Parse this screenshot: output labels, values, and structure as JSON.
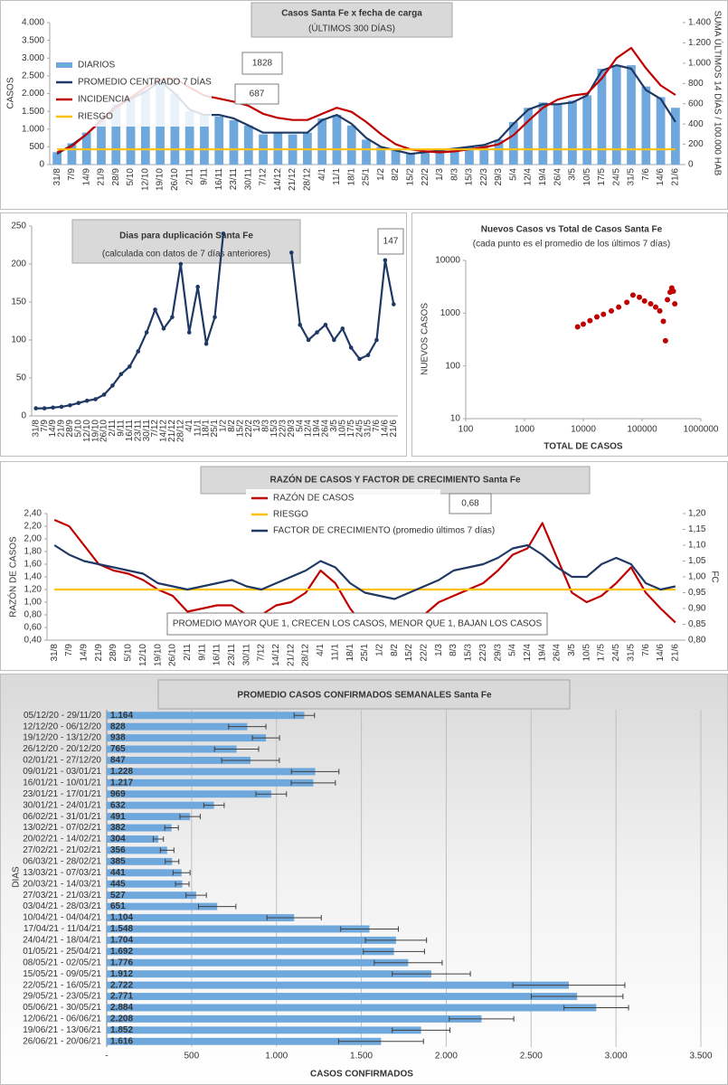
{
  "chart_data": [
    {
      "type": "combo",
      "title": "Casos Santa Fe x fecha de carga",
      "subtitle": "(ÚLTIMOS 300 DÍAS)",
      "ylabel": "CASOS",
      "y2label": "SUMA ÚLTIMOS 14 DÍAS / 100.000 HAB",
      "categories": [
        "31/8",
        "7/9",
        "14/9",
        "21/9",
        "28/9",
        "5/10",
        "12/10",
        "19/10",
        "26/10",
        "2/11",
        "9/11",
        "16/11",
        "23/11",
        "30/11",
        "7/12",
        "14/12",
        "21/12",
        "28/12",
        "4/1",
        "11/1",
        "18/1",
        "25/1",
        "1/2",
        "8/2",
        "15/2",
        "22/2",
        "1/3",
        "8/3",
        "15/3",
        "22/3",
        "29/3",
        "5/4",
        "12/4",
        "19/4",
        "26/4",
        "3/5",
        "10/5",
        "17/5",
        "24/5",
        "31/5",
        "7/6",
        "14/6",
        "21/6"
      ],
      "series": [
        {
          "name": "DIARIOS",
          "type": "bar",
          "color": "#6fa8dc",
          "values": [
            350,
            600,
            900,
            1300,
            1700,
            1900,
            2100,
            2400,
            2000,
            1500,
            1400,
            1350,
            1250,
            1100,
            850,
            900,
            850,
            900,
            1300,
            1400,
            1100,
            700,
            500,
            400,
            300,
            350,
            400,
            450,
            500,
            550,
            700,
            1200,
            1600,
            1750,
            1700,
            1800,
            1950,
            2700,
            2800,
            2800,
            2200,
            1900,
            1600
          ]
        },
        {
          "name": "PROMEDIO CENTRADO 7 DÍAS",
          "type": "line",
          "color": "#1f3864",
          "values": [
            300,
            550,
            850,
            1250,
            1650,
            1850,
            2050,
            2350,
            2000,
            1550,
            1400,
            1400,
            1300,
            1100,
            900,
            900,
            900,
            900,
            1250,
            1400,
            1150,
            750,
            500,
            400,
            300,
            350,
            400,
            450,
            500,
            550,
            700,
            1150,
            1550,
            1700,
            1700,
            1750,
            1950,
            2650,
            2800,
            2700,
            2100,
            1850,
            1200
          ]
        },
        {
          "name": "INCIDENCIA",
          "type": "line",
          "axis": "y2",
          "color": "#c00000",
          "values": [
            120,
            180,
            300,
            430,
            560,
            660,
            760,
            840,
            850,
            760,
            680,
            650,
            620,
            580,
            500,
            460,
            440,
            440,
            500,
            560,
            520,
            420,
            300,
            200,
            150,
            130,
            120,
            130,
            150,
            170,
            200,
            290,
            430,
            560,
            640,
            680,
            700,
            850,
            1050,
            1150,
            950,
            780,
            687
          ]
        },
        {
          "name": "RIESGO",
          "type": "line",
          "axis": "y2",
          "color": "#ffc000",
          "values": [
            150,
            150,
            150,
            150,
            150,
            150,
            150,
            150,
            150,
            150,
            150,
            150,
            150,
            150,
            150,
            150,
            150,
            150,
            150,
            150,
            150,
            150,
            150,
            150,
            150,
            150,
            150,
            150,
            150,
            150,
            150,
            150,
            150,
            150,
            150,
            150,
            150,
            150,
            150,
            150,
            150,
            150,
            150
          ]
        }
      ],
      "ylim": [
        0,
        4000
      ],
      "yticks": [
        0,
        500,
        {
          "value": 1000,
          "label": "1.000"
        },
        {
          "value": 1500,
          "label": "1.500"
        },
        {
          "value": 2000,
          "label": "2.000"
        },
        {
          "value": 2500,
          "label": "2.500"
        },
        {
          "value": 3000,
          "label": "3.000"
        },
        {
          "value": 3500,
          "label": "3.500"
        },
        {
          "value": 4000,
          "label": "4.000"
        }
      ],
      "y2lim": [
        0,
        1400
      ],
      "y2ticks": [
        0,
        200,
        400,
        600,
        800,
        {
          "value": 1000,
          "label": "1.000"
        },
        {
          "value": 1200,
          "label": "1.200"
        },
        {
          "value": 1400,
          "label": "1.400"
        }
      ],
      "grid": false,
      "legend": "upper left",
      "annotations": [
        "1828",
        "687"
      ]
    },
    {
      "type": "line",
      "title": "Dias para duplicación Santa Fe",
      "subtitle": "(calculada con datos de 7 días anteriores)",
      "categories": [
        "31/8",
        "7/9",
        "14/9",
        "21/9",
        "28/9",
        "5/10",
        "12/10",
        "19/10",
        "26/10",
        "2/11",
        "9/11",
        "16/11",
        "23/11",
        "30/11",
        "7/12",
        "14/12",
        "21/12",
        "28/12",
        "4/1",
        "11/1",
        "18/1",
        "25/1",
        "1/2",
        "8/2",
        "15/2",
        "22/2",
        "1/3",
        "8/3",
        "15/3",
        "22/3",
        "29/3",
        "5/4",
        "12/4",
        "19/4",
        "26/4",
        "3/5",
        "10/5",
        "17/5",
        "24/5",
        "31/5",
        "7/6",
        "14/6",
        "21/6"
      ],
      "series": [
        {
          "color": "#1f3864",
          "marker": true,
          "values": [
            10,
            10,
            11,
            12,
            14,
            17,
            20,
            22,
            28,
            40,
            55,
            65,
            85,
            110,
            140,
            115,
            130,
            200,
            110,
            170,
            95,
            130,
            240,
            null,
            null,
            null,
            null,
            null,
            null,
            null,
            215,
            120,
            100,
            110,
            120,
            100,
            115,
            90,
            75,
            80,
            100,
            205,
            147
          ]
        }
      ],
      "ylim": [
        0,
        250
      ],
      "yticks": [
        0,
        50,
        100,
        150,
        200,
        250
      ],
      "grid": false,
      "annotations": [
        "147"
      ]
    },
    {
      "type": "scatter",
      "title": "Nuevos Casos vs Total de Casos Santa Fe",
      "subtitle": "(cada punto es el promedio de los últimos 7 días)",
      "xlabel": "TOTAL DE CASOS",
      "ylabel": "NUEVOS CASOS",
      "color": "#c00000",
      "x": [
        8000,
        10000,
        13000,
        17000,
        22000,
        30000,
        40000,
        55000,
        70000,
        90000,
        110000,
        140000,
        170000,
        200000,
        230000,
        250000,
        270000,
        300000,
        320000,
        340000,
        360000
      ],
      "values": [
        550,
        620,
        720,
        850,
        950,
        1100,
        1300,
        1600,
        2200,
        2000,
        1700,
        1500,
        1300,
        1100,
        700,
        300,
        1800,
        2500,
        3000,
        2600,
        1500
      ],
      "xscale": "log",
      "yscale": "log",
      "xlim": [
        100,
        1000000
      ],
      "xticks": [
        100,
        1000,
        10000,
        100000,
        1000000
      ],
      "ylim": [
        10,
        10000
      ],
      "yticks": [
        10,
        100,
        1000,
        10000
      ],
      "grid": false
    },
    {
      "type": "line",
      "title": "RAZÓN DE CASOS Y FACTOR DE CRECIMIENTO Santa Fe",
      "ylabel": "RAZÓN DE CASOS",
      "y2label": "FC",
      "categories": [
        "31/8",
        "7/9",
        "14/9",
        "21/9",
        "28/9",
        "5/10",
        "12/10",
        "19/10",
        "26/10",
        "2/11",
        "9/11",
        "16/11",
        "23/11",
        "30/11",
        "7/12",
        "14/12",
        "21/12",
        "28/12",
        "4/1",
        "11/1",
        "18/1",
        "25/1",
        "1/2",
        "8/2",
        "15/2",
        "22/2",
        "1/3",
        "8/3",
        "15/3",
        "22/3",
        "29/3",
        "5/4",
        "12/4",
        "19/4",
        "26/4",
        "3/5",
        "10/5",
        "17/5",
        "24/5",
        "31/5",
        "7/6",
        "14/6",
        "21/6"
      ],
      "series": [
        {
          "name": "RAZÓN DE CASOS",
          "color": "#c00000",
          "values": [
            2.3,
            2.2,
            1.9,
            1.6,
            1.5,
            1.45,
            1.35,
            1.2,
            1.1,
            0.85,
            0.9,
            0.95,
            0.95,
            0.8,
            0.8,
            0.95,
            1.0,
            1.15,
            1.5,
            1.3,
            0.9,
            0.6,
            0.55,
            0.5,
            0.6,
            0.8,
            1.0,
            1.1,
            1.2,
            1.3,
            1.5,
            1.75,
            1.85,
            2.25,
            1.7,
            1.15,
            1.0,
            1.1,
            1.3,
            1.55,
            1.15,
            0.9,
            0.68
          ]
        },
        {
          "name": "RIESGO",
          "color": "#ffc000",
          "values": [
            1.2,
            1.2,
            1.2,
            1.2,
            1.2,
            1.2,
            1.2,
            1.2,
            1.2,
            1.2,
            1.2,
            1.2,
            1.2,
            1.2,
            1.2,
            1.2,
            1.2,
            1.2,
            1.2,
            1.2,
            1.2,
            1.2,
            1.2,
            1.2,
            1.2,
            1.2,
            1.2,
            1.2,
            1.2,
            1.2,
            1.2,
            1.2,
            1.2,
            1.2,
            1.2,
            1.2,
            1.2,
            1.2,
            1.2,
            1.2,
            1.2,
            1.2,
            1.2
          ]
        },
        {
          "name": "FACTOR DE CRECIMIENTO (promedio últimos 7 días)",
          "axis": "y2",
          "color": "#1f3864",
          "values": [
            1.1,
            1.07,
            1.05,
            1.04,
            1.03,
            1.02,
            1.01,
            0.98,
            0.97,
            0.96,
            0.97,
            0.98,
            0.99,
            0.97,
            0.96,
            0.98,
            1.0,
            1.02,
            1.05,
            1.03,
            0.98,
            0.95,
            0.94,
            0.93,
            0.95,
            0.97,
            0.99,
            1.02,
            1.03,
            1.04,
            1.06,
            1.09,
            1.1,
            1.07,
            1.03,
            1.0,
            1.0,
            1.04,
            1.06,
            1.04,
            0.98,
            0.96,
            0.97
          ]
        }
      ],
      "ylim": [
        0.4,
        2.4
      ],
      "yticks": [
        {
          "value": 0.4,
          "label": "0,40"
        },
        {
          "value": 0.6,
          "label": "0,60"
        },
        {
          "value": 0.8,
          "label": "0,80"
        },
        {
          "value": 1.0,
          "label": "1,00"
        },
        {
          "value": 1.2,
          "label": "1,20"
        },
        {
          "value": 1.4,
          "label": "1,40"
        },
        {
          "value": 1.6,
          "label": "1,60"
        },
        {
          "value": 1.8,
          "label": "1,80"
        },
        {
          "value": 2.0,
          "label": "2,00"
        },
        {
          "value": 2.2,
          "label": "2,20"
        },
        {
          "value": 2.4,
          "label": "2,40"
        }
      ],
      "y2lim": [
        0.8,
        1.2
      ],
      "y2ticks": [
        {
          "value": 0.8,
          "label": "0,80"
        },
        {
          "value": 0.85,
          "label": "0,85"
        },
        {
          "value": 0.9,
          "label": "0,90"
        },
        {
          "value": 0.95,
          "label": "0,95"
        },
        {
          "value": 1.0,
          "label": "1,00"
        },
        {
          "value": 1.05,
          "label": "1,05"
        },
        {
          "value": 1.1,
          "label": "1,10"
        },
        {
          "value": 1.15,
          "label": "1,15"
        },
        {
          "value": 1.2,
          "label": "1,20"
        }
      ],
      "grid": false,
      "legend": "upper center",
      "annotations": [
        "0,68",
        "PROMEDIO MAYOR QUE 1, CRECEN LOS CASOS, MENOR QUE 1, BAJAN LOS CASOS"
      ]
    },
    {
      "type": "bar",
      "orientation": "horizontal",
      "title": "PROMEDIO CASOS CONFIRMADOS SEMANALES Santa Fe",
      "xlabel": "CASOS CONFIRMADOS",
      "ylabel": "DIAS",
      "color": "#6fa8dc",
      "categories": [
        "05/12/20 - 29/11/20",
        "12/12/20 - 06/12/20",
        "19/12/20 - 13/12/20",
        "26/12/20 - 20/12/20",
        "02/01/21 - 27/12/20",
        "09/01/21 - 03/01/21",
        "16/01/21 - 10/01/21",
        "23/01/21 - 17/01/21",
        "30/01/21 - 24/01/21",
        "06/02/21 - 31/01/21",
        "13/02/21 - 07/02/21",
        "20/02/21 - 14/02/21",
        "27/02/21 - 21/02/21",
        "06/03/21 - 28/02/21",
        "13/03/21 - 07/03/21",
        "20/03/21 - 14/03/21",
        "27/03/21 - 21/03/21",
        "03/04/21 - 28/03/21",
        "10/04/21 - 04/04/21",
        "17/04/21 - 11/04/21",
        "24/04/21 - 18/04/21",
        "01/05/21 - 25/04/21",
        "08/05/21 - 02/05/21",
        "15/05/21 - 09/05/21",
        "22/05/21 - 16/05/21",
        "29/05/21 - 23/05/21",
        "05/06/21 - 30/05/21",
        "12/06/21 - 06/06/21",
        "19/06/21 - 13/06/21",
        "26/06/21 - 20/06/21"
      ],
      "values": [
        1164,
        828,
        938,
        765,
        847,
        1228,
        1217,
        969,
        632,
        491,
        382,
        304,
        356,
        385,
        441,
        445,
        527,
        651,
        1104,
        1548,
        1704,
        1692,
        1776,
        1912,
        2722,
        2771,
        2884,
        2208,
        1852,
        1616
      ],
      "value_labels": [
        "1.164",
        "828",
        "938",
        "765",
        "847",
        "1.228",
        "1.217",
        "969",
        "632",
        "491",
        "382",
        "304",
        "356",
        "385",
        "441",
        "445",
        "527",
        "651",
        "1.104",
        "1.548",
        "1.704",
        "1.692",
        "1.776",
        "1.912",
        "2.722",
        "2.771",
        "2.884",
        "2.208",
        "1.852",
        "1.616"
      ],
      "errors": [
        60,
        110,
        80,
        130,
        170,
        140,
        130,
        90,
        60,
        60,
        40,
        30,
        40,
        40,
        50,
        40,
        60,
        110,
        160,
        170,
        180,
        180,
        200,
        230,
        330,
        270,
        190,
        190,
        170,
        250
      ],
      "xlim": [
        0,
        3500
      ],
      "xticks": [
        {
          "value": 0,
          "label": "-"
        },
        500,
        {
          "value": 1000,
          "label": "1.000"
        },
        {
          "value": 1500,
          "label": "1.500"
        },
        {
          "value": 2000,
          "label": "2.000"
        },
        {
          "value": 2500,
          "label": "2.500"
        },
        {
          "value": 3000,
          "label": "3.000"
        },
        {
          "value": 3500,
          "label": "3.500"
        }
      ],
      "grid": true
    }
  ]
}
